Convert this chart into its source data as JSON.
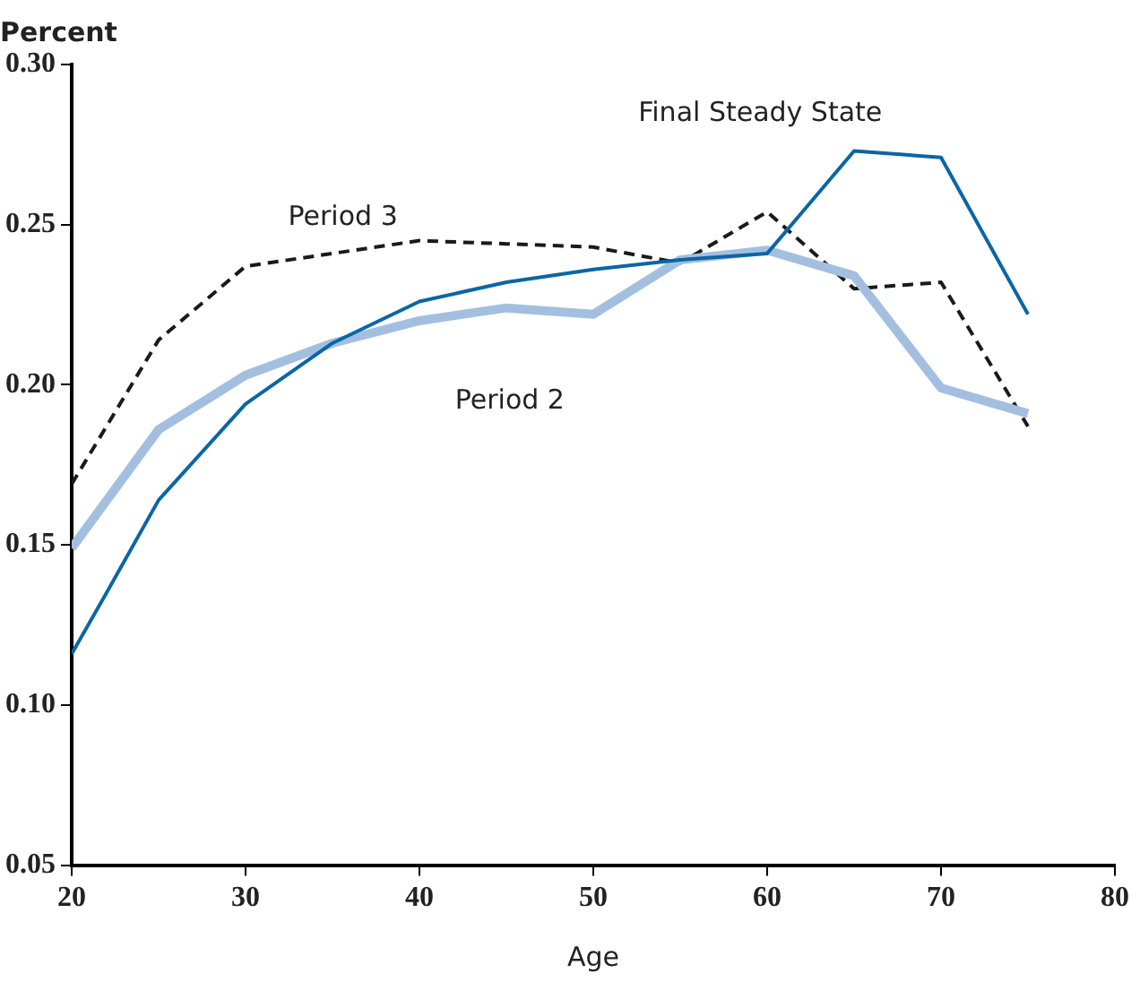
{
  "chart_data": {
    "type": "line",
    "ylabel": "Percent",
    "xlabel": "Age",
    "xlim": [
      20,
      80
    ],
    "xticks": [
      20,
      30,
      40,
      50,
      60,
      70,
      80
    ],
    "ylim": [
      0.05,
      0.3
    ],
    "yticks": [
      {
        "value": 0.05,
        "label": "0.05"
      },
      {
        "value": 0.1,
        "label": "0.10"
      },
      {
        "value": 0.15,
        "label": "0.15"
      },
      {
        "value": 0.2,
        "label": "0.20"
      },
      {
        "value": 0.25,
        "label": "0.25"
      },
      {
        "value": 0.3,
        "label": "0.30"
      }
    ],
    "grid": false,
    "legend": false,
    "marker": "none",
    "series": [
      {
        "name": "Final Steady State",
        "color": "#0a66a6",
        "line_style": "solid",
        "x": [
          20,
          22,
          25,
          30,
          35,
          40,
          45,
          50,
          55,
          60,
          65,
          70,
          75
        ],
        "values": [
          0.116,
          0.135,
          0.164,
          0.194,
          0.213,
          0.226,
          0.232,
          0.236,
          0.239,
          0.241,
          0.273,
          0.271,
          0.222
        ]
      },
      {
        "name": "Period 2",
        "color": "#a3bfe0",
        "line_style": "solid",
        "x": [
          20,
          25,
          30,
          35,
          40,
          45,
          50,
          55,
          60,
          65,
          70,
          75
        ],
        "values": [
          0.149,
          0.186,
          0.203,
          0.213,
          0.22,
          0.224,
          0.222,
          0.239,
          0.242,
          0.234,
          0.199,
          0.191
        ]
      },
      {
        "name": "Period 3",
        "color": "#1a1a1a",
        "line_style": "dashed",
        "x": [
          20,
          25,
          30,
          35,
          40,
          45,
          50,
          55,
          60,
          65,
          70,
          75
        ],
        "values": [
          0.169,
          0.214,
          0.237,
          0.241,
          0.245,
          0.244,
          0.243,
          0.238,
          0.254,
          0.23,
          0.232,
          0.187
        ]
      }
    ]
  }
}
